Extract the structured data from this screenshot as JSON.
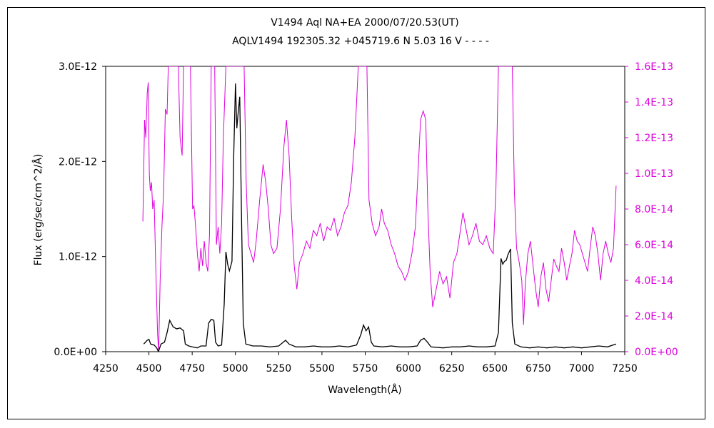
{
  "chart_data": {
    "type": "line",
    "title": "V1494 Aql    NA+EA    2000/07/20.53(UT)",
    "subtitle": "AQLV1494 192305.32 +045719.6 N 5.03 16 V - - - -",
    "xlabel": "Wavelength(Å)",
    "ylabel": "Flux (erg/sec/cm^2/Å)",
    "xlim": [
      4250,
      7250
    ],
    "ylim": [
      0,
      3e-12
    ],
    "y2lim": [
      0,
      1.6e-13
    ],
    "x_ticks": [
      "4250",
      "4500",
      "4750",
      "5000",
      "5250",
      "5500",
      "5750",
      "6000",
      "6250",
      "6500",
      "6750",
      "7000",
      "7250"
    ],
    "y_ticks": [
      "0.0E+00",
      "1.0E-12",
      "2.0E-12",
      "3.0E-12"
    ],
    "y2_ticks": [
      "0.0E+00",
      "2.0E-14",
      "4.0E-14",
      "6.0E-14",
      "8.0E-14",
      "1.0E-13",
      "1.2E-13",
      "1.4E-13",
      "1.6E-13"
    ],
    "series": [
      {
        "axis": "left",
        "color": "#000000",
        "points": [
          [
            4470,
            8e-14
          ],
          [
            4490,
            1.2e-13
          ],
          [
            4500,
            1.3e-13
          ],
          [
            4510,
            8e-14
          ],
          [
            4530,
            7e-14
          ],
          [
            4545,
            4e-14
          ],
          [
            4555,
            0.0
          ],
          [
            4570,
            8e-14
          ],
          [
            4590,
            1e-13
          ],
          [
            4605,
            2e-13
          ],
          [
            4620,
            3.3e-13
          ],
          [
            4640,
            2.6e-13
          ],
          [
            4660,
            2.4e-13
          ],
          [
            4680,
            2.5e-13
          ],
          [
            4700,
            2.2e-13
          ],
          [
            4710,
            8e-14
          ],
          [
            4730,
            6e-14
          ],
          [
            4750,
            5e-14
          ],
          [
            4780,
            4e-14
          ],
          [
            4800,
            6e-14
          ],
          [
            4830,
            6e-14
          ],
          [
            4845,
            3e-13
          ],
          [
            4860,
            3.4e-13
          ],
          [
            4875,
            3.3e-13
          ],
          [
            4885,
            1e-13
          ],
          [
            4900,
            6e-14
          ],
          [
            4920,
            7e-14
          ],
          [
            4935,
            5e-13
          ],
          [
            4945,
            1.05e-12
          ],
          [
            4955,
            9.2e-13
          ],
          [
            4965,
            8.5e-13
          ],
          [
            4980,
            9.5e-13
          ],
          [
            4990,
            2.05e-12
          ],
          [
            5000,
            2.82e-12
          ],
          [
            5008,
            2.35e-12
          ],
          [
            5015,
            2.5e-12
          ],
          [
            5025,
            2.68e-12
          ],
          [
            5035,
            1.45e-12
          ],
          [
            5045,
            3e-13
          ],
          [
            5060,
            8e-14
          ],
          [
            5100,
            6e-14
          ],
          [
            5150,
            6e-14
          ],
          [
            5200,
            5e-14
          ],
          [
            5250,
            6e-14
          ],
          [
            5290,
            1.2e-13
          ],
          [
            5310,
            8e-14
          ],
          [
            5350,
            5e-14
          ],
          [
            5400,
            5e-14
          ],
          [
            5450,
            6e-14
          ],
          [
            5500,
            5e-14
          ],
          [
            5550,
            5e-14
          ],
          [
            5600,
            6e-14
          ],
          [
            5650,
            5e-14
          ],
          [
            5700,
            7e-14
          ],
          [
            5725,
            1.8e-13
          ],
          [
            5740,
            2.8e-13
          ],
          [
            5755,
            2.2e-13
          ],
          [
            5770,
            2.6e-13
          ],
          [
            5785,
            1e-13
          ],
          [
            5800,
            6e-14
          ],
          [
            5850,
            5e-14
          ],
          [
            5900,
            6e-14
          ],
          [
            5950,
            5e-14
          ],
          [
            6000,
            5e-14
          ],
          [
            6050,
            6e-14
          ],
          [
            6070,
            1.2e-13
          ],
          [
            6090,
            1.4e-13
          ],
          [
            6110,
            1e-13
          ],
          [
            6130,
            5e-14
          ],
          [
            6200,
            4e-14
          ],
          [
            6250,
            5e-14
          ],
          [
            6300,
            5e-14
          ],
          [
            6350,
            6e-14
          ],
          [
            6400,
            5e-14
          ],
          [
            6450,
            5e-14
          ],
          [
            6500,
            6e-14
          ],
          [
            6520,
            2e-13
          ],
          [
            6535,
            9.8e-13
          ],
          [
            6545,
            9.2e-13
          ],
          [
            6555,
            9.5e-13
          ],
          [
            6565,
            9.6e-13
          ],
          [
            6575,
            1.02e-12
          ],
          [
            6590,
            1.08e-12
          ],
          [
            6600,
            3e-13
          ],
          [
            6615,
            8e-14
          ],
          [
            6650,
            5e-14
          ],
          [
            6700,
            4e-14
          ],
          [
            6750,
            5e-14
          ],
          [
            6800,
            4e-14
          ],
          [
            6850,
            5e-14
          ],
          [
            6900,
            4e-14
          ],
          [
            6950,
            5e-14
          ],
          [
            7000,
            4e-14
          ],
          [
            7050,
            5e-14
          ],
          [
            7100,
            6e-14
          ],
          [
            7150,
            5e-14
          ],
          [
            7200,
            8e-14
          ]
        ]
      },
      {
        "axis": "right",
        "color": "#dd00dd",
        "points": [
          [
            4465,
            7.3e-14
          ],
          [
            4475,
            1.3e-13
          ],
          [
            4482,
            1.2e-13
          ],
          [
            4490,
            1.45e-13
          ],
          [
            4496,
            1.51e-13
          ],
          [
            4502,
            1e-13
          ],
          [
            4508,
            9e-14
          ],
          [
            4515,
            9.5e-14
          ],
          [
            4522,
            8e-14
          ],
          [
            4530,
            8.5e-14
          ],
          [
            4540,
            4.5e-14
          ],
          [
            4550,
            1e-14
          ],
          [
            4556,
            0.0
          ],
          [
            4565,
            4e-14
          ],
          [
            4575,
            7e-14
          ],
          [
            4585,
            9e-14
          ],
          [
            4595,
            1.36e-13
          ],
          [
            4605,
            1.33e-13
          ],
          [
            4612,
            1.6e-13
          ],
          [
            4670,
            1.6e-13
          ],
          [
            4680,
            1.2e-13
          ],
          [
            4692,
            1.1e-13
          ],
          [
            4700,
            1.6e-13
          ],
          [
            4740,
            1.6e-13
          ],
          [
            4752,
            8e-14
          ],
          [
            4760,
            8.2e-14
          ],
          [
            4770,
            7e-14
          ],
          [
            4780,
            5.5e-14
          ],
          [
            4790,
            4.5e-14
          ],
          [
            4800,
            5.8e-14
          ],
          [
            4810,
            4.8e-14
          ],
          [
            4820,
            6.2e-14
          ],
          [
            4830,
            5e-14
          ],
          [
            4840,
            4.5e-14
          ],
          [
            4850,
            6.5e-14
          ],
          [
            4860,
            1.6e-13
          ],
          [
            4880,
            1.6e-13
          ],
          [
            4890,
            6e-14
          ],
          [
            4900,
            7e-14
          ],
          [
            4910,
            5.5e-14
          ],
          [
            4920,
            7.2e-14
          ],
          [
            4930,
            1.2e-13
          ],
          [
            4945,
            1.6e-13
          ],
          [
            5050,
            1.6e-13
          ],
          [
            5062,
            9.5e-14
          ],
          [
            5075,
            6e-14
          ],
          [
            5090,
            5.5e-14
          ],
          [
            5105,
            5e-14
          ],
          [
            5120,
            6.2e-14
          ],
          [
            5140,
            8.5e-14
          ],
          [
            5160,
            1.05e-13
          ],
          [
            5175,
            9.5e-14
          ],
          [
            5190,
            8e-14
          ],
          [
            5205,
            6e-14
          ],
          [
            5220,
            5.5e-14
          ],
          [
            5240,
            5.8e-14
          ],
          [
            5260,
            8e-14
          ],
          [
            5280,
            1.15e-13
          ],
          [
            5295,
            1.3e-13
          ],
          [
            5310,
            1.1e-13
          ],
          [
            5325,
            7.5e-14
          ],
          [
            5340,
            4.8e-14
          ],
          [
            5355,
            3.5e-14
          ],
          [
            5370,
            5e-14
          ],
          [
            5390,
            5.5e-14
          ],
          [
            5410,
            6.2e-14
          ],
          [
            5430,
            5.8e-14
          ],
          [
            5450,
            6.8e-14
          ],
          [
            5470,
            6.5e-14
          ],
          [
            5490,
            7.2e-14
          ],
          [
            5510,
            6.2e-14
          ],
          [
            5530,
            7e-14
          ],
          [
            5550,
            6.8e-14
          ],
          [
            5570,
            7.5e-14
          ],
          [
            5590,
            6.5e-14
          ],
          [
            5610,
            7e-14
          ],
          [
            5630,
            7.8e-14
          ],
          [
            5650,
            8.2e-14
          ],
          [
            5670,
            9.5e-14
          ],
          [
            5690,
            1.2e-13
          ],
          [
            5710,
            1.6e-13
          ],
          [
            5760,
            1.6e-13
          ],
          [
            5772,
            8.5e-14
          ],
          [
            5790,
            7.2e-14
          ],
          [
            5810,
            6.5e-14
          ],
          [
            5830,
            7e-14
          ],
          [
            5845,
            8e-14
          ],
          [
            5860,
            7.2e-14
          ],
          [
            5880,
            6.8e-14
          ],
          [
            5900,
            6e-14
          ],
          [
            5920,
            5.5e-14
          ],
          [
            5940,
            4.8e-14
          ],
          [
            5960,
            4.5e-14
          ],
          [
            5980,
            4e-14
          ],
          [
            6000,
            4.5e-14
          ],
          [
            6020,
            5.5e-14
          ],
          [
            6040,
            7e-14
          ],
          [
            6055,
            1e-13
          ],
          [
            6070,
            1.3e-13
          ],
          [
            6085,
            1.35e-13
          ],
          [
            6100,
            1.3e-13
          ],
          [
            6112,
            8e-14
          ],
          [
            6125,
            4.5e-14
          ],
          [
            6140,
            2.5e-14
          ],
          [
            6160,
            3.5e-14
          ],
          [
            6180,
            4.5e-14
          ],
          [
            6200,
            3.8e-14
          ],
          [
            6220,
            4.2e-14
          ],
          [
            6240,
            3e-14
          ],
          [
            6260,
            5e-14
          ],
          [
            6280,
            5.5e-14
          ],
          [
            6300,
            6.8e-14
          ],
          [
            6315,
            7.8e-14
          ],
          [
            6330,
            7e-14
          ],
          [
            6350,
            6e-14
          ],
          [
            6370,
            6.5e-14
          ],
          [
            6390,
            7.2e-14
          ],
          [
            6410,
            6.2e-14
          ],
          [
            6430,
            6e-14
          ],
          [
            6450,
            6.5e-14
          ],
          [
            6470,
            5.8e-14
          ],
          [
            6490,
            5.5e-14
          ],
          [
            6505,
            9e-14
          ],
          [
            6520,
            1.6e-13
          ],
          [
            6600,
            1.6e-13
          ],
          [
            6612,
            9e-14
          ],
          [
            6625,
            5.8e-14
          ],
          [
            6640,
            5e-14
          ],
          [
            6655,
            4e-14
          ],
          [
            6665,
            1.5e-14
          ],
          [
            6675,
            3.8e-14
          ],
          [
            6690,
            5.5e-14
          ],
          [
            6705,
            6.2e-14
          ],
          [
            6720,
            4.8e-14
          ],
          [
            6735,
            3.5e-14
          ],
          [
            6750,
            2.5e-14
          ],
          [
            6765,
            4.2e-14
          ],
          [
            6780,
            5e-14
          ],
          [
            6795,
            3.5e-14
          ],
          [
            6810,
            2.8e-14
          ],
          [
            6825,
            4e-14
          ],
          [
            6840,
            5.2e-14
          ],
          [
            6855,
            4.8e-14
          ],
          [
            6870,
            4.5e-14
          ],
          [
            6885,
            5.8e-14
          ],
          [
            6900,
            5e-14
          ],
          [
            6915,
            4e-14
          ],
          [
            6930,
            4.8e-14
          ],
          [
            6945,
            5.5e-14
          ],
          [
            6960,
            6.8e-14
          ],
          [
            6975,
            6.2e-14
          ],
          [
            6990,
            6e-14
          ],
          [
            7005,
            5.5e-14
          ],
          [
            7020,
            5e-14
          ],
          [
            7035,
            4.5e-14
          ],
          [
            7050,
            5.8e-14
          ],
          [
            7065,
            7e-14
          ],
          [
            7080,
            6.5e-14
          ],
          [
            7095,
            5.5e-14
          ],
          [
            7110,
            4e-14
          ],
          [
            7125,
            5.5e-14
          ],
          [
            7140,
            6.2e-14
          ],
          [
            7155,
            5.5e-14
          ],
          [
            7170,
            5e-14
          ],
          [
            7185,
            5.8e-14
          ],
          [
            7200,
            9.3e-14
          ]
        ]
      }
    ]
  }
}
